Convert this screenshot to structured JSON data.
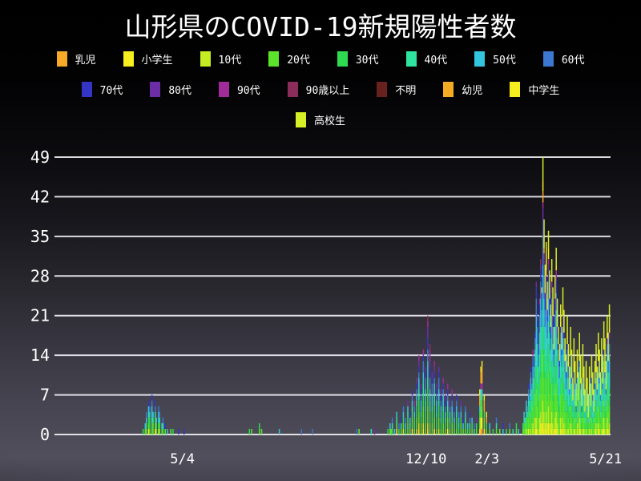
{
  "title": "山形県のCOVID-19新規陽性者数",
  "accent_colors": {
    "grid": "#ededf2",
    "text": "#ffffff",
    "background_top": "#000000",
    "background_bottom": "#4f4e5a"
  },
  "legend": {
    "rows": [
      [
        "a",
        "b",
        "c",
        "d",
        "e",
        "f",
        "g",
        "h"
      ],
      [
        "i",
        "j",
        "k",
        "l",
        "m",
        "n",
        "o"
      ],
      [
        "p"
      ]
    ]
  },
  "chart_data": {
    "type": "bar",
    "stacked": true,
    "title": "山形県のCOVID-19新規陽性者数",
    "xlabel": "",
    "ylabel": "",
    "ylim": [
      0,
      49
    ],
    "y_ticks": [
      0,
      7,
      14,
      21,
      28,
      35,
      42,
      49
    ],
    "grid": true,
    "legend_position": "top",
    "x_domain_days": [
      0,
      501
    ],
    "x_ticks": [
      {
        "label": "5/4",
        "day": 114
      },
      {
        "label": "12/10",
        "day": 334
      },
      {
        "label": "2/3",
        "day": 389
      },
      {
        "label": "5/21",
        "day": 496
      }
    ],
    "series": [
      {
        "key": "a",
        "label": "乳児",
        "color": "#f7a928"
      },
      {
        "key": "b",
        "label": "小学生",
        "color": "#f6ee1f"
      },
      {
        "key": "c",
        "label": "10代",
        "color": "#c5ec23"
      },
      {
        "key": "d",
        "label": "20代",
        "color": "#5ce42c"
      },
      {
        "key": "e",
        "label": "30代",
        "color": "#2fdc51"
      },
      {
        "key": "f",
        "label": "40代",
        "color": "#2ee49e"
      },
      {
        "key": "g",
        "label": "50代",
        "color": "#33c5de"
      },
      {
        "key": "h",
        "label": "60代",
        "color": "#3c78cf"
      },
      {
        "key": "i",
        "label": "70代",
        "color": "#3434c5"
      },
      {
        "key": "j",
        "label": "80代",
        "color": "#6c2ea6"
      },
      {
        "key": "k",
        "label": "90代",
        "color": "#a12c99"
      },
      {
        "key": "l",
        "label": "90歳以上",
        "color": "#8b2d5a"
      },
      {
        "key": "m",
        "label": "不明",
        "color": "#67211e"
      },
      {
        "key": "n",
        "label": "幼児",
        "color": "#f6ab24"
      },
      {
        "key": "o",
        "label": "中学生",
        "color": "#f7ee20"
      },
      {
        "key": "p",
        "label": "高校生",
        "color": "#d5ee25"
      }
    ],
    "bars": [
      "78|e1",
      "80|d1 g1",
      "81|d1 e1 g1 h1",
      "83|b1 d1 e1 f1 g1 i1",
      "84|d1 e2 g1 h1",
      "86|d1 e1 f1 g2 h1 i1",
      "87|d2 f1 g1",
      "89|b1 d1 e1 f1 h1 i1",
      "90|d1 e1 g1",
      "92|c1 d1 f1 g1 h1",
      "93|d1 e1 g1 h1",
      "95|e1 g1",
      "96|d1 f1 h1",
      "98|d1 i1",
      "100|g1",
      "103|d1",
      "105|e1",
      "110|i1",
      "115|i1",
      "174|e1",
      "176|d1",
      "183|d1 e1",
      "185|d1",
      "201|g1",
      "221|h1",
      "231|h1",
      "271|h1",
      "273|d1",
      "284|f1",
      "287|j1",
      "302|d1",
      "299|e1",
      "301|d1 g1",
      "303|e1 f1 h1",
      "305|g1",
      "307|b1 d1 f1 g1",
      "309|e1 h1",
      "311|d1 f1 i1",
      "313|c1 d1 e1 g1 h1",
      "315|e1 g1 h1",
      "317|d2 e1 f1 g1 j1",
      "319|d1 f1 g1 i1",
      "321|b1 d2 e1 f1 g1 h1 i1",
      "323|d1 e2 g1 h1 k1",
      "325|c1 d2 e2 f1 g1 h1 i1 j1",
      "327|b1 c1 d2 e2 f2 g2 h1 i1 j1 k1",
      "329|d2 e1 f1 g2 h1 i1 j1",
      "331|b1 c1 d3 e2 f2 g2 h2 i1 k1",
      "333|d2 e2 f2 g2 h2 i1 j1",
      "335|b1 c1 d3 e3 f2 g3 h2 i2 j2 k1 l1",
      "337|d2 e2 f2 g2 h2 i2 j1 k2 l1",
      "339|d2 e2 f1 g2 h2 i1 j1",
      "341|b1 d2 e2 f2 g2 h1 i1 j1 k1",
      "343|d1 e2 f1 g2 h1 i1 j1",
      "345|c1 d2 e2 f1 g2 h2 i1 j1",
      "347|d1 e1 f1 g2 h1 i1 j1",
      "349|d2 e2 f1 g2 h1 i1 k1",
      "351|d1 e1 f1 g1 h1 i1 j1",
      "353|b1 d2 e1 f1 g1 h1 i1 k1",
      "355|d1 e1 f1 g1 h1 j1",
      "357|d2 e1 f1 g1 h1 i1 k1",
      "359|d1 e1 g1 h1 i1",
      "361|d1 e2 f1 g1 h1 i1",
      "363|e1 f1 g1 h1",
      "365|d2 e1 g1 h1 j1",
      "367|d1 g1 i1",
      "369|d1 e1 f1 g1 h1",
      "371|e1 g1",
      "373|d1 f1 h1 i1",
      "375|d1 e1 g1",
      "377|f1 h1",
      "379|d1 e1 j1",
      "382|b1 d2 e1 g1 n2 o1",
      "383|a1 b2 d2 e1 f1 g1 k1 n2 o1",
      "384|a1 b2 d2 e1 f1 g1 k1 n3 o1",
      "386|b1 d2 e1 n2 o1",
      "388|d1 e1 n1 o1",
      "391|d1 g1",
      "394|e1",
      "397|d1 f1 h1",
      "400|d1",
      "403|g1 i1",
      "406|e1",
      "409|d1 h1",
      "412|f1",
      "415|d1 e1",
      "417|g1",
      "421|d1 e1",
      "422|d1 e1 f1 g1",
      "423|d2 g1",
      "424|c1 d2 e1 f1 g1",
      "425|d1 e2 g1 h1",
      "426|b1 d2 e2 f1 g1 h1 i1",
      "427|d2 e1 f1 g2 h1",
      "428|c1 d3 e2 f2 g2 h1 i1",
      "429|d2 e2 f2 g2 h1 j1",
      "430|b1 c1 d3 e3 f2 g2 h2 k1",
      "431|d3 e2 f2 g3 h2 i1",
      "432|b1 c2 d4 e3 f2 g3 h2 i1",
      "433|b1 c2 d5 e4 f4 g5 h3 i2 j1",
      "434|c1 d4 e4 f3 g4 h3 i1 j1",
      "435|d3 e3 f3 g3 h2 i1 j1",
      "436|b1 c2 d4 e4 f3 g4 h3 i2 k1",
      "437|b2 c2 d6 e5 f4 g5 h3 i2 j1 l1",
      "438|c2 d5 e4 f4 g4 h3 i2 j1 n1",
      "439|b2 c4 d8 e5 f5 g6 h5 i3 j2 k1 n2 o2 p4",
      "440|b1 c3 d6 e5 f4 g5 h4 i2 j1 k1 n1 o2 p3",
      "441|c2 d5 e4 f4 g4 h3 i2 j1 o2 p3",
      "442|b1 c3 d6 e4 f4 g4 h3 i2 j1 n1 o2 p3",
      "443|c2 d4 e4 f3 g4 h3 i1 j1 o2 p3",
      "444|b2 c3 d6 e5 f4 g4 h3 i2 j1 k1 o2 p3",
      "445|c2 d5 e4 f3 g4 h3 i2 j1 o2 p3",
      "446|c2 d4 e3 f3 g3 h2 i1 j1 o1 p3",
      "447|b1 c3 d5 e4 f4 g4 h3 i1 j1 k1 o1 p3",
      "448|c2 d4 e4 f3 g3 h3 i1 j1 o2 p3",
      "449|c1 d3 e3 f2 g3 h2 i1 o1 p3",
      "450|b1 c2 d5 e4 f3 g4 h2 i2 j1 o1 p3",
      "451|b1 c3 d5 e5 f4 g4 h3 i2 j1 k1 o1 p3",
      "452|c2 d4 e3 f3 g3 h2 i1 j1 o2 p3",
      "453|c1 d3 e3 f3 g3 h2 i1 p3",
      "454|d3 e2 f2 g3 h2 i1 p3",
      "455|b1 c2 d4 e3 f3 g3 h2 i1 o1 p3",
      "456|c1 d3 e3 f2 g3 h2 i1 o1 p3",
      "457|b1 c2 d4 e4 f3 g3 h2 i1 j1 o2 p3",
      "458|c2 d4 e3 f3 g3 h2 i1 o1 p3",
      "459|c1 d3 e2 f2 g3 h2 o1 p3",
      "460|d2 e2 f2 g2 h2 i1 p3",
      "461|c1 d3 e3 f3 g3 h2 i1 o2 p3",
      "462|c1 d2 e2 f2 g3 h2 o1 p3",
      "463|d2 e2 f1 g2 h1 p4",
      "464|c2 d3 e2 f2 g3 h2 o1 p4",
      "465|c1 d2 e2 f2 g2 h1 o1 p4",
      "466|d2 e1 f1 g2 p4",
      "467|c1 d2 e2 f2 g2 h2 o2 p4",
      "468|c1 d2 e2 f1 g2 h1 p4",
      "469|d1 e1 f1 g1 h1 p4",
      "470|b1 c1 d2 e2 f2 g2 o1 p4",
      "471|d2 e1 f1 g2 p5",
      "472|b1 c2 d3 e2 f2 g2 h1 o1 p4",
      "473|c1 d2 e2 f1 g2 h1 p5",
      "474|d1 e1 f1 g1 h1 p5",
      "475|c1 d2 e2 f2 g2 h1 o1 p5",
      "476|c1 d2 e1 f1 g2 p5",
      "477|d1 e1 f1 g1 p4",
      "478|c1 d2 e2 f1 g2 p5",
      "479|d1 e2 f1 g1 p5",
      "480|d1 e1 g1 p4",
      "481|c1 d2 e1 f1 g2 p5",
      "482|d1 e1 f1 g2 p4",
      "483|c1 d2 e2 f2 g2 h1 p4",
      "484|d2 e1 f1 g2 h1 p4",
      "485|d1 e1 f1 g1 p4",
      "486|c1 d2 e2 f1 g2 h1 p4",
      "487|b1 c1 d2 e2 f2 g2 h1 o1 p4",
      "488|d2 e2 f1 g2 h1 p4",
      "489|b1 c1 d3 e2 f2 g2 h1 i1 o1 p4",
      "490|c1 d2 e2 f2 g2 h1 o1 p4",
      "491|d2 e1 f1 g2 h1 p4",
      "492|c1 d3 e2 f2 g2 h1 o1 p5",
      "493|c1 d2 e2 f1 g2 h1 p5",
      "494|b1 c2 d3 e2 f2 g3 h1 i1 o1 p4",
      "495|c1 d2 e2 f2 g3 h1 o1 p5",
      "496|d2 e2 f1 g2 h1 p5",
      "497|b1 c2 d3 e3 f2 g3 h2 j1 o1 p3",
      "498|c1 d3 e2 f2 g3 h2 o1 p4",
      "499|c2 d3 e3 f3 g3 h2 i1 j1 o1 p4"
    ]
  }
}
